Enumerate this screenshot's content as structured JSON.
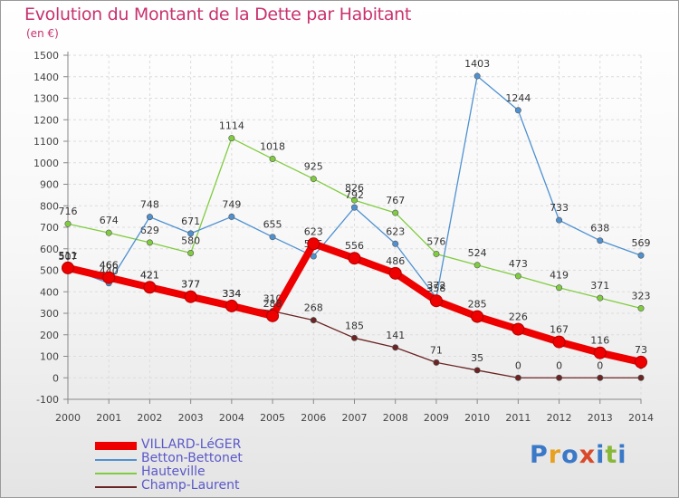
{
  "title": "Evolution du Montant de la Dette par Habitant",
  "subtitle": "(en €)",
  "logo": {
    "text": "Proxiti",
    "colors": [
      "#3a78c8",
      "#e8a020",
      "#3a78c8",
      "#d84a2a",
      "#3a78c8",
      "#88b83a",
      "#3a78c8"
    ]
  },
  "chart_data": {
    "type": "line",
    "x": [
      "2000",
      "2001",
      "2002",
      "2003",
      "2004",
      "2005",
      "2006",
      "2007",
      "2008",
      "2009",
      "2010",
      "2011",
      "2012",
      "2013",
      "2014"
    ],
    "ylim": [
      -100,
      1500
    ],
    "yticks": [
      -100,
      0,
      100,
      200,
      300,
      400,
      500,
      600,
      700,
      800,
      900,
      1000,
      1100,
      1200,
      1300,
      1400,
      1500
    ],
    "grid": true,
    "legend_position": "bottom-left",
    "series": [
      {
        "name": "Champ-Laurent",
        "color": "#6b2424",
        "emphasis": false,
        "values": [
          507,
          466,
          421,
          377,
          334,
          310,
          268,
          185,
          141,
          71,
          35,
          0,
          0,
          0,
          0
        ],
        "labels": [
          "507",
          "466",
          "421",
          "377",
          "334",
          "310",
          "268",
          "185",
          "141",
          "71",
          "35",
          "0",
          "0",
          "0",
          "0"
        ]
      },
      {
        "name": "Hauteville",
        "color": "#80cc40",
        "emphasis": false,
        "values": [
          716,
          674,
          629,
          580,
          1114,
          1018,
          925,
          826,
          767,
          576,
          524,
          473,
          419,
          371,
          323
        ],
        "labels": [
          "716",
          "674",
          "629",
          "580",
          "1114",
          "1018",
          "925",
          "826",
          "767",
          "576",
          "524",
          "473",
          "419",
          "371",
          "323"
        ]
      },
      {
        "name": "Betton-Bettonet",
        "color": "#4f91d0",
        "emphasis": false,
        "values": [
          511,
          440,
          748,
          671,
          749,
          655,
          565,
          792,
          623,
          372,
          1403,
          1244,
          733,
          638,
          569
        ],
        "labels": [
          "511",
          "440",
          "748",
          "671",
          "749",
          "655",
          "565",
          "792",
          "623",
          "372",
          "1403",
          "1244",
          "733",
          "638",
          "569"
        ]
      },
      {
        "name": "VILLARD-LéGER",
        "color": "#ee0000",
        "emphasis": true,
        "values": [
          511,
          466,
          421,
          377,
          334,
          288,
          623,
          556,
          486,
          358,
          285,
          226,
          167,
          116,
          73
        ],
        "labels": [
          "511",
          "466",
          "421",
          "377",
          "334",
          "288",
          "623",
          "556",
          "486",
          "358",
          "285",
          "226",
          "167",
          "116",
          "73"
        ]
      }
    ]
  }
}
